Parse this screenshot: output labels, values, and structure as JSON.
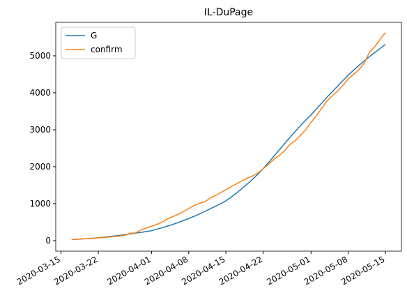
{
  "chart_data": {
    "type": "line",
    "title": "IL-DuPage",
    "x": [
      "2020-03-17",
      "2020-03-18",
      "2020-03-19",
      "2020-03-20",
      "2020-03-21",
      "2020-03-22",
      "2020-03-23",
      "2020-03-24",
      "2020-03-25",
      "2020-03-26",
      "2020-03-27",
      "2020-03-28",
      "2020-03-29",
      "2020-03-30",
      "2020-03-31",
      "2020-04-01",
      "2020-04-02",
      "2020-04-03",
      "2020-04-04",
      "2020-04-05",
      "2020-04-06",
      "2020-04-07",
      "2020-04-08",
      "2020-04-09",
      "2020-04-10",
      "2020-04-11",
      "2020-04-12",
      "2020-04-13",
      "2020-04-14",
      "2020-04-15",
      "2020-04-16",
      "2020-04-17",
      "2020-04-18",
      "2020-04-19",
      "2020-04-20",
      "2020-04-21",
      "2020-04-22",
      "2020-04-23",
      "2020-04-24",
      "2020-04-25",
      "2020-04-26",
      "2020-04-27",
      "2020-04-28",
      "2020-04-29",
      "2020-04-30",
      "2020-05-01",
      "2020-05-02",
      "2020-05-03",
      "2020-05-04",
      "2020-05-05",
      "2020-05-06",
      "2020-05-07",
      "2020-05-08",
      "2020-05-09",
      "2020-05-10",
      "2020-05-11",
      "2020-05-12",
      "2020-05-13",
      "2020-05-14",
      "2020-05-15"
    ],
    "series": [
      {
        "name": "G",
        "color": "#1f77b4",
        "values": [
          30,
          38,
          47,
          57,
          68,
          80,
          95,
          110,
          127,
          145,
          165,
          185,
          205,
          225,
          247,
          270,
          310,
          350,
          395,
          440,
          490,
          545,
          600,
          660,
          720,
          790,
          860,
          930,
          1000,
          1080,
          1180,
          1290,
          1410,
          1530,
          1660,
          1800,
          1950,
          2110,
          2280,
          2450,
          2620,
          2790,
          2950,
          3110,
          3260,
          3400,
          3560,
          3720,
          3880,
          4030,
          4180,
          4330,
          4480,
          4610,
          4740,
          4860,
          4980,
          5090,
          5200,
          5310
        ]
      },
      {
        "name": "confirm",
        "color": "#ff7f0e",
        "values": [
          30,
          40,
          50,
          55,
          65,
          75,
          85,
          100,
          115,
          125,
          150,
          200,
          210,
          290,
          340,
          390,
          440,
          500,
          590,
          650,
          710,
          790,
          870,
          950,
          1010,
          1050,
          1150,
          1220,
          1300,
          1380,
          1460,
          1540,
          1620,
          1690,
          1750,
          1830,
          1950,
          2060,
          2200,
          2300,
          2430,
          2600,
          2700,
          2850,
          3000,
          3200,
          3380,
          3580,
          3780,
          3920,
          4050,
          4200,
          4380,
          4500,
          4620,
          4800,
          5100,
          5250,
          5450,
          5630
        ]
      }
    ],
    "xlim": [
      "2020-03-14",
      "2020-05-18"
    ],
    "xticks": [
      "2020-03-15",
      "2020-03-22",
      "2020-04-01",
      "2020-04-08",
      "2020-04-15",
      "2020-04-22",
      "2020-05-01",
      "2020-05-08",
      "2020-05-15"
    ],
    "ylim": [
      -283,
      5906
    ],
    "yticks": [
      0,
      1000,
      2000,
      3000,
      4000,
      5000
    ],
    "legend": "upper left"
  }
}
